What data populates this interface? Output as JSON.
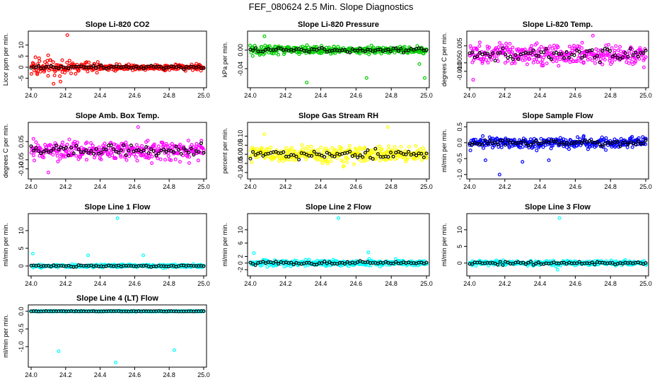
{
  "page": {
    "title": "FEF_080624  2.5 Min. Slope Diagnostics"
  },
  "colors": {
    "black": "#000000",
    "red": "#ff0000",
    "green": "#00cc00",
    "magenta": "#ff00ff",
    "yellow": "#ffff00",
    "blue": "#0000ff",
    "cyan": "#00ffff"
  },
  "chart_data": [
    {
      "type": "scatter",
      "title": "Slope Li-820 CO2",
      "ylabel": "Licor ppm per min.",
      "xlim": [
        24.0,
        25.0
      ],
      "ylim": [
        -8,
        15
      ],
      "xticks": [
        "24.0",
        "24.2",
        "24.4",
        "24.6",
        "24.8",
        "25.0"
      ],
      "yticks": [
        {
          "v": -5,
          "l": "-5"
        },
        {
          "v": 0,
          "l": "0"
        },
        {
          "v": 5,
          "l": "5"
        },
        {
          "v": 10,
          "l": "10"
        }
      ],
      "color": "red",
      "spread": 1.4,
      "early_spread_boost": 3,
      "outliers": [
        [
          24.21,
          14.5
        ],
        [
          24.13,
          -7.5
        ],
        [
          24.17,
          -6.5
        ]
      ],
      "black_offset": 0
    },
    {
      "type": "scatter",
      "title": "Slope Li-820 Pressure",
      "ylabel": "kPa per min.",
      "xlim": [
        24.0,
        25.0
      ],
      "ylim": [
        -0.075,
        0.035
      ],
      "xticks": [
        "24.0",
        "24.2",
        "24.4",
        "24.6",
        "24.8",
        "25.0"
      ],
      "yticks": [
        {
          "v": 0.0,
          "l": "0.00"
        },
        {
          "v": -0.04,
          "l": "-0.04"
        }
      ],
      "color": "green",
      "spread": 0.008,
      "early_spread_boost": 1.5,
      "outliers": [
        [
          24.08,
          0.03
        ],
        [
          24.32,
          -0.07
        ],
        [
          24.66,
          -0.06
        ],
        [
          24.99,
          -0.06
        ],
        [
          24.96,
          -0.03
        ]
      ],
      "black_offset": 0
    },
    {
      "type": "scatter",
      "title": "Slope Li-820 Temp.",
      "ylabel": "degrees C per min.",
      "xlim": [
        24.0,
        25.0
      ],
      "ylim": [
        -0.018,
        0.012
      ],
      "xticks": [
        "24.0",
        "24.2",
        "24.4",
        "24.6",
        "24.8",
        "25.0"
      ],
      "yticks": [
        {
          "v": 0.005,
          "l": "0.005"
        },
        {
          "v": -0.005,
          "l": "-0.005"
        },
        {
          "v": -0.01,
          "l": "-0.010"
        }
      ],
      "color": "magenta",
      "spread": 0.006,
      "early_spread_boost": 1,
      "outliers": [
        [
          24.7,
          0.011
        ],
        [
          24.02,
          -0.015
        ]
      ],
      "black_offset": 0
    },
    {
      "type": "scatter",
      "title": "Slope Amb. Box Temp.",
      "ylabel": "degrees C per min.",
      "xlim": [
        24.0,
        25.0
      ],
      "ylim": [
        -0.14,
        0.14
      ],
      "xticks": [
        "24.0",
        "24.2",
        "24.4",
        "24.6",
        "24.8",
        "25.0"
      ],
      "yticks": [
        {
          "v": 0.05,
          "l": "0.05"
        },
        {
          "v": -0.05,
          "l": "-0.05"
        },
        {
          "v": -0.1,
          "l": "-0.10"
        }
      ],
      "color": "magenta",
      "spread": 0.05,
      "early_spread_boost": 1,
      "outliers": [
        [
          24.62,
          0.13
        ],
        [
          24.1,
          -0.12
        ]
      ],
      "black_offset": 0
    },
    {
      "type": "scatter",
      "title": "Slope Gas Stream RH",
      "ylabel": "percent per min.",
      "xlim": [
        24.0,
        25.0
      ],
      "ylim": [
        -0.12,
        0.16
      ],
      "xticks": [
        "24.0",
        "24.2",
        "24.4",
        "24.6",
        "24.8",
        "25.0"
      ],
      "yticks": [
        {
          "v": 0.1,
          "l": "0.10"
        },
        {
          "v": 0.05,
          "l": "0.05"
        },
        {
          "v": 0.0,
          "l": "0.00"
        },
        {
          "v": -0.05,
          "l": "-0.05"
        },
        {
          "v": -0.1,
          "l": "-0.10"
        }
      ],
      "color": "yellow",
      "spread": 0.045,
      "early_spread_boost": 1,
      "outliers": [
        [
          24.78,
          0.15
        ],
        [
          24.08,
          0.11
        ]
      ],
      "black_offset": 0
    },
    {
      "type": "scatter",
      "title": "Slope Sample Flow",
      "ylabel": "ml/min per min.",
      "xlim": [
        24.0,
        25.0
      ],
      "ylim": [
        -1.05,
        0.55
      ],
      "xticks": [
        "24.0",
        "24.2",
        "24.4",
        "24.6",
        "24.8",
        "25.0"
      ],
      "yticks": [
        {
          "v": 0.5,
          "l": "0.5"
        },
        {
          "v": 0.0,
          "l": "0.0"
        },
        {
          "v": -0.5,
          "l": "-0.5"
        },
        {
          "v": -1.0,
          "l": "-1.0"
        }
      ],
      "color": "blue",
      "spread": 0.17,
      "early_spread_boost": 1,
      "outliers": [
        [
          24.17,
          -1.0
        ],
        [
          24.09,
          -0.55
        ],
        [
          24.3,
          -0.6
        ],
        [
          24.45,
          -0.55
        ]
      ],
      "black_offset": 0
    },
    {
      "type": "scatter",
      "title": "Slope Line 1 Flow",
      "ylabel": "ml/min per min.",
      "xlim": [
        24.0,
        25.0
      ],
      "ylim": [
        -2,
        14
      ],
      "xticks": [
        "24.0",
        "24.2",
        "24.4",
        "24.6",
        "24.8",
        "25.0"
      ],
      "yticks": [
        {
          "v": 0,
          "l": "0"
        },
        {
          "v": 5,
          "l": "5"
        },
        {
          "v": 10,
          "l": "10"
        }
      ],
      "color": "cyan",
      "spread": 0.45,
      "early_spread_boost": 1,
      "outliers": [
        [
          24.5,
          13.5
        ],
        [
          24.01,
          3.5
        ],
        [
          24.33,
          3.0
        ],
        [
          24.65,
          3.0
        ]
      ],
      "black_offset": 0
    },
    {
      "type": "scatter",
      "title": "Slope Line 2 Flow",
      "ylabel": "ml/min per min.",
      "xlim": [
        24.0,
        25.0
      ],
      "ylim": [
        -3,
        14
      ],
      "xticks": [
        "24.0",
        "24.2",
        "24.4",
        "24.6",
        "24.8",
        "25.0"
      ],
      "yticks": [
        {
          "v": -2,
          "l": "-2"
        },
        {
          "v": 0,
          "l": "0"
        },
        {
          "v": 2,
          "l": "2"
        },
        {
          "v": 6,
          "l": "6"
        },
        {
          "v": 10,
          "l": "10"
        }
      ],
      "color": "cyan",
      "spread": 0.9,
      "early_spread_boost": 1,
      "outliers": [
        [
          24.5,
          13.5
        ],
        [
          24.02,
          3.0
        ],
        [
          24.67,
          3.2
        ]
      ],
      "black_offset": 0
    },
    {
      "type": "scatter",
      "title": "Slope Line 3 Flow",
      "ylabel": "ml/min per min.",
      "xlim": [
        24.0,
        25.0
      ],
      "ylim": [
        -3,
        14
      ],
      "xticks": [
        "24.0",
        "24.2",
        "24.4",
        "24.6",
        "24.8",
        "25.0"
      ],
      "yticks": [
        {
          "v": 0,
          "l": "0"
        },
        {
          "v": 5,
          "l": "5"
        },
        {
          "v": 10,
          "l": "10"
        }
      ],
      "color": "cyan",
      "spread": 0.7,
      "early_spread_boost": 1,
      "outliers": [
        [
          24.51,
          13.5
        ],
        [
          24.5,
          -2.0
        ]
      ],
      "black_offset": 0
    },
    {
      "type": "scatter",
      "title": "Slope Line 4 (LT) Flow",
      "ylabel": "ml/min per min.",
      "xlim": [
        24.0,
        25.0
      ],
      "ylim": [
        -1.5,
        0.1
      ],
      "xticks": [
        "24.0",
        "24.2",
        "24.4",
        "24.6",
        "24.8",
        "25.0"
      ],
      "yticks": [
        {
          "v": 0.0,
          "l": "0.0"
        },
        {
          "v": -0.5,
          "l": "-0.5"
        },
        {
          "v": -1.0,
          "l": "-1.0"
        }
      ],
      "color": "cyan",
      "spread": 0.012,
      "early_spread_boost": 1,
      "outliers": [
        [
          24.16,
          -1.13
        ],
        [
          24.49,
          -1.45
        ],
        [
          24.83,
          -1.1
        ]
      ],
      "black_offset": 0
    }
  ]
}
